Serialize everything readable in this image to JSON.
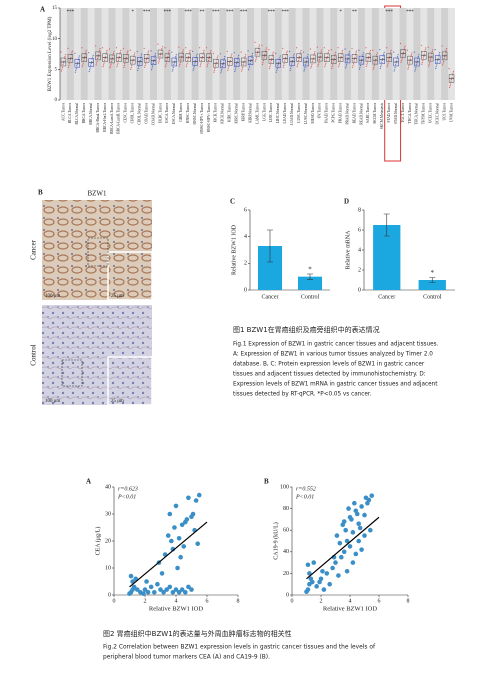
{
  "chart_data": [
    {
      "type": "box",
      "label": "A",
      "ylabel": "BZW1 Expression Level (log2 TPM)",
      "categories": [
        "ACC.Tumor",
        "BLCA.Tumor",
        "BLCA.Normal",
        "BRCA.Tumor",
        "BRCA.Normal",
        "BRCA-Basal.Tumor",
        "BRCA-Her2.Tumor",
        "BRCA-LumA.Tumor",
        "BRCA-LumB.Tumor",
        "CESC.Tumor",
        "CHOL.Tumor",
        "CHOL.Normal",
        "COAD.Tumor",
        "COAD.Normal",
        "DLBC.Tumor",
        "ESCA.Tumor",
        "ESCA.Normal",
        "GBM.Tumor",
        "HNSC.Tumor",
        "HNSC.Normal",
        "HNSC-HPV+.Tumor",
        "HNSC-HPV-.Tumor",
        "KICH.Tumor",
        "KICH.Normal",
        "KIRC.Tumor",
        "KIRC.Normal",
        "KIRP.Tumor",
        "KIRP.Normal",
        "LAML.Tumor",
        "LGG.Tumor",
        "LIHC.Tumor",
        "LIHC.Normal",
        "LUAD.Tumor",
        "LUAD.Normal",
        "LUSC.Tumor",
        "LUSC.Normal",
        "MESO.Tumor",
        "OV.Tumor",
        "PAAD.Tumor",
        "PCPG.Tumor",
        "PRAD.Tumor",
        "PRAD.Normal",
        "READ.Tumor",
        "READ.Normal",
        "SARC.Tumor",
        "SKCM.Tumor",
        "SKCM.Metastasis",
        "STAD.Tumor",
        "STAD.Normal",
        "TGCT.Tumor",
        "THCA.Tumor",
        "THCA.Normal",
        "THYM.Tumor",
        "UCEC.Tumor",
        "UCEC.Normal",
        "UCS.Tumor",
        "UVM.Tumor"
      ],
      "values": [
        6.2,
        6.8,
        6.0,
        6.9,
        6.1,
        7.2,
        6.9,
        6.7,
        6.9,
        6.8,
        6.5,
        6.3,
        6.8,
        6.4,
        7.5,
        6.9,
        6.2,
        7.0,
        6.9,
        6.3,
        6.9,
        6.9,
        6.0,
        5.9,
        6.3,
        6.1,
        6.2,
        6.4,
        7.8,
        7.3,
        6.6,
        6.0,
        6.8,
        6.3,
        6.9,
        6.2,
        6.7,
        7.0,
        6.9,
        6.6,
        6.9,
        6.7,
        6.8,
        6.5,
        6.9,
        6.5,
        6.6,
        6.9,
        6.2,
        7.6,
        6.5,
        6.2,
        7.3,
        7.0,
        6.6,
        7.2,
        3.5
      ],
      "significance": [
        null,
        "***",
        null,
        null,
        null,
        null,
        null,
        null,
        null,
        null,
        "*",
        null,
        "***",
        null,
        null,
        "***",
        null,
        null,
        "***",
        null,
        "**",
        null,
        "***",
        null,
        "***",
        null,
        "***",
        null,
        null,
        null,
        "***",
        null,
        "***",
        null,
        null,
        null,
        null,
        null,
        null,
        null,
        "*",
        null,
        "**",
        null,
        null,
        null,
        null,
        "***",
        null,
        null,
        "***",
        null,
        null,
        null,
        null,
        null,
        null
      ],
      "tumor_color": "#e8262a",
      "normal_color": "#2b3fc1",
      "ylim": [
        0,
        15
      ],
      "yticks": [
        0,
        5,
        10,
        15
      ]
    },
    {
      "type": "bar",
      "label": "C",
      "ylabel": "Relative BZW1 IOD",
      "categories": [
        "Cancer",
        "Control"
      ],
      "values": [
        3.3,
        1.0
      ],
      "errors": [
        1.2,
        0.2
      ],
      "annotations": [
        null,
        "*"
      ],
      "color": "#1ba8e0",
      "ylim": [
        0,
        6
      ],
      "yticks": [
        0,
        2,
        4,
        6
      ]
    },
    {
      "type": "bar",
      "label": "D",
      "ylabel": "Relative mRNA",
      "categories": [
        "Cancer",
        "Control"
      ],
      "values": [
        6.5,
        1.0
      ],
      "errors": [
        1.1,
        0.25
      ],
      "annotations": [
        null,
        "*"
      ],
      "color": "#1ba8e0",
      "ylim": [
        0,
        8
      ],
      "yticks": [
        0,
        2,
        4,
        6,
        8
      ]
    },
    {
      "type": "scatter",
      "label": "A",
      "xlabel": "Relative BZW1 IOD",
      "ylabel": "CEA (μg/L)",
      "r_text": "r=0.623",
      "p_text": "P<0.01",
      "color": "#3a8fc7",
      "x": [
        1.0,
        1.1,
        1.2,
        1.3,
        1.2,
        1.5,
        1.7,
        1.9,
        2.0,
        2.2,
        2.4,
        2.6,
        2.8,
        3.0,
        3.2,
        3.4,
        3.6,
        3.8,
        4.0,
        4.2,
        4.4,
        4.6,
        4.8,
        5.0,
        1.1,
        1.4,
        2.1,
        2.9,
        3.3,
        3.7,
        4.1,
        4.5,
        3.1,
        3.5,
        3.9,
        4.3,
        4.7,
        5.1,
        5.3,
        5.5,
        3.6,
        4.0,
        4.4,
        4.8,
        5.2,
        3.8,
        4.2,
        4.6,
        5.0,
        5.4
      ],
      "y": [
        0.5,
        1,
        2,
        3,
        5,
        2,
        1,
        0.5,
        2,
        1,
        3,
        1,
        4,
        2,
        1,
        2,
        3,
        1,
        2,
        1,
        2,
        1,
        3,
        2,
        7,
        6,
        5,
        12,
        15,
        20,
        10,
        18,
        8,
        22,
        25,
        14,
        28,
        30,
        35,
        37,
        30,
        33,
        26,
        36,
        24,
        17,
        21,
        27,
        29,
        19
      ],
      "fit": {
        "x": [
          1,
          6
        ],
        "y": [
          3,
          27
        ]
      },
      "xlim": [
        0,
        8
      ],
      "xticks": [
        0,
        2,
        4,
        6,
        8
      ],
      "ylim": [
        0,
        40
      ],
      "yticks": [
        0,
        10,
        20,
        30,
        40
      ]
    },
    {
      "type": "scatter",
      "label": "B",
      "xlabel": "Relative BZW1 IOD",
      "ylabel": "CA19-9 (kU/L)",
      "r_text": "r=0.552",
      "p_text": "P<0.01",
      "color": "#3a8fc7",
      "x": [
        1.0,
        1.1,
        1.2,
        1.3,
        1.2,
        1.5,
        1.7,
        1.9,
        2.0,
        2.2,
        2.4,
        2.6,
        2.8,
        3.0,
        3.2,
        3.4,
        3.6,
        3.8,
        4.0,
        4.2,
        4.4,
        4.6,
        4.8,
        5.0,
        1.1,
        1.4,
        2.1,
        2.9,
        3.3,
        3.7,
        4.1,
        4.5,
        3.1,
        3.5,
        3.9,
        4.3,
        4.7,
        5.1,
        5.3,
        5.5,
        3.6,
        4.0,
        4.4,
        4.8,
        5.2,
        3.8,
        4.2,
        4.6,
        5.0,
        5.4
      ],
      "y": [
        3,
        5,
        10,
        15,
        20,
        30,
        8,
        12,
        15,
        5,
        20,
        10,
        25,
        30,
        18,
        35,
        40,
        22,
        45,
        30,
        38,
        50,
        42,
        55,
        28,
        12,
        22,
        35,
        48,
        60,
        70,
        75,
        55,
        65,
        80,
        85,
        62,
        90,
        88,
        92,
        68,
        72,
        78,
        82,
        85,
        50,
        58,
        66,
        74,
        60
      ],
      "fit": {
        "x": [
          1,
          6
        ],
        "y": [
          15,
          72
        ]
      },
      "xlim": [
        0,
        8
      ],
      "xticks": [
        0,
        2,
        4,
        6,
        8
      ],
      "ylim": [
        0,
        100
      ],
      "yticks": [
        0,
        20,
        40,
        60,
        80,
        100
      ]
    }
  ],
  "figure1": {
    "panel_b": {
      "label": "B",
      "title": "BZW1",
      "rows": [
        "Cancer",
        "Control"
      ],
      "scale_large": "100 μm",
      "scale_small": "25 μm"
    },
    "caption": [
      "图1 BZW1在胃癌组织及癌旁组织中的表达情况",
      "Fig.1  Expression of BZW1 in gastric cancer tissues and adjacent tissues.",
      "A: Expression of BZW1 in various tumor tissues analyzed by Timer 2.0",
      "database. B, C: Protein expression levels of BZW1 in gastric cancer",
      "tissues and adjacent tissues detected by immunohistochemistry. D:",
      "Expression levels of BZW1 mRNA in gastric cancer tissues and adjacent",
      "tissues detected by RT-qPCR. *P<0.05 vs cancer."
    ]
  },
  "figure2": {
    "caption": [
      "图2 胃癌组织中BZW1的表达量与外周血肿瘤标志物的相关性",
      "Fig.2  Correlation between BZW1 expression levels in gastric cancer tissues and the levels of",
      "peripheral blood tumor markers CEA (A) and CA19-9 (B)."
    ]
  }
}
